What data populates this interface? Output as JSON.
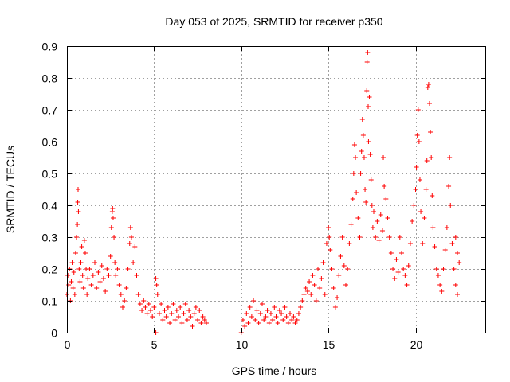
{
  "chart_data": {
    "type": "scatter",
    "title": "Day 053 of 2025, SRMTID for receiver p350",
    "xlabel": "GPS time / hours",
    "ylabel": "SRMTID / TECUs",
    "xlim": [
      0,
      24
    ],
    "ylim": [
      0,
      0.9
    ],
    "xticks": [
      0,
      5,
      10,
      15,
      20
    ],
    "yticks": [
      0,
      0.1,
      0.2,
      0.3,
      0.4,
      0.5,
      0.6,
      0.7,
      0.8,
      0.9
    ],
    "grid": true,
    "marker": "+",
    "color": "#ff0000",
    "series": [
      {
        "name": "SRMTID",
        "points": [
          [
            0.0,
            0.12
          ],
          [
            0.05,
            0.18
          ],
          [
            0.1,
            0.15
          ],
          [
            0.15,
            0.2
          ],
          [
            0.2,
            0.1
          ],
          [
            0.25,
            0.16
          ],
          [
            0.3,
            0.22
          ],
          [
            0.35,
            0.14
          ],
          [
            0.4,
            0.19
          ],
          [
            0.45,
            0.12
          ],
          [
            0.5,
            0.25
          ],
          [
            0.55,
            0.3
          ],
          [
            0.6,
            0.34
          ],
          [
            0.62,
            0.41
          ],
          [
            0.64,
            0.45
          ],
          [
            0.66,
            0.38
          ],
          [
            0.7,
            0.2
          ],
          [
            0.75,
            0.16
          ],
          [
            0.8,
            0.22
          ],
          [
            0.85,
            0.27
          ],
          [
            0.9,
            0.18
          ],
          [
            0.95,
            0.14
          ],
          [
            1.0,
            0.29
          ],
          [
            1.05,
            0.25
          ],
          [
            1.1,
            0.2
          ],
          [
            1.15,
            0.12
          ],
          [
            1.2,
            0.17
          ],
          [
            1.3,
            0.2
          ],
          [
            1.4,
            0.15
          ],
          [
            1.5,
            0.18
          ],
          [
            1.6,
            0.22
          ],
          [
            1.7,
            0.14
          ],
          [
            1.8,
            0.19
          ],
          [
            1.9,
            0.16
          ],
          [
            2.0,
            0.21
          ],
          [
            2.1,
            0.17
          ],
          [
            2.2,
            0.13
          ],
          [
            2.3,
            0.2
          ],
          [
            2.4,
            0.18
          ],
          [
            2.5,
            0.24
          ],
          [
            2.55,
            0.33
          ],
          [
            2.6,
            0.38
          ],
          [
            2.62,
            0.39
          ],
          [
            2.65,
            0.36
          ],
          [
            2.7,
            0.3
          ],
          [
            2.75,
            0.22
          ],
          [
            2.8,
            0.18
          ],
          [
            2.9,
            0.2
          ],
          [
            3.0,
            0.15
          ],
          [
            3.1,
            0.12
          ],
          [
            3.2,
            0.08
          ],
          [
            3.3,
            0.1
          ],
          [
            3.4,
            0.14
          ],
          [
            3.5,
            0.2
          ],
          [
            3.6,
            0.28
          ],
          [
            3.65,
            0.33
          ],
          [
            3.7,
            0.3
          ],
          [
            3.8,
            0.22
          ],
          [
            3.9,
            0.27
          ],
          [
            4.0,
            0.18
          ],
          [
            4.1,
            0.12
          ],
          [
            4.2,
            0.09
          ],
          [
            4.3,
            0.07
          ],
          [
            4.4,
            0.1
          ],
          [
            4.5,
            0.08
          ],
          [
            4.6,
            0.06
          ],
          [
            4.7,
            0.09
          ],
          [
            4.8,
            0.07
          ],
          [
            4.9,
            0.05
          ],
          [
            5.0,
            0.08
          ],
          [
            5.1,
            0.17
          ],
          [
            5.15,
            0.15
          ],
          [
            5.2,
            0.12
          ],
          [
            5.3,
            0.06
          ],
          [
            5.4,
            0.09
          ],
          [
            5.5,
            0.04
          ],
          [
            5.6,
            0.07
          ],
          [
            5.7,
            0.05
          ],
          [
            5.8,
            0.08
          ],
          [
            5.9,
            0.03
          ],
          [
            6.0,
            0.06
          ],
          [
            6.1,
            0.09
          ],
          [
            6.2,
            0.04
          ],
          [
            6.3,
            0.07
          ],
          [
            6.4,
            0.05
          ],
          [
            6.5,
            0.08
          ],
          [
            6.6,
            0.03
          ],
          [
            6.7,
            0.06
          ],
          [
            6.8,
            0.09
          ],
          [
            6.9,
            0.04
          ],
          [
            7.0,
            0.07
          ],
          [
            7.1,
            0.05
          ],
          [
            7.2,
            0.02
          ],
          [
            7.3,
            0.06
          ],
          [
            7.4,
            0.08
          ],
          [
            7.5,
            0.04
          ],
          [
            7.6,
            0.07
          ],
          [
            7.7,
            0.03
          ],
          [
            7.8,
            0.05
          ],
          [
            7.9,
            0.04
          ],
          [
            8.0,
            0.03
          ],
          [
            5.1,
            0.0
          ],
          [
            10.0,
            0.0
          ],
          [
            10.1,
            0.04
          ],
          [
            10.2,
            0.02
          ],
          [
            10.3,
            0.06
          ],
          [
            10.4,
            0.03
          ],
          [
            10.5,
            0.08
          ],
          [
            10.6,
            0.05
          ],
          [
            10.7,
            0.1
          ],
          [
            10.8,
            0.04
          ],
          [
            10.9,
            0.07
          ],
          [
            11.0,
            0.03
          ],
          [
            11.1,
            0.06
          ],
          [
            11.2,
            0.09
          ],
          [
            11.3,
            0.04
          ],
          [
            11.4,
            0.05
          ],
          [
            11.5,
            0.07
          ],
          [
            11.6,
            0.03
          ],
          [
            11.7,
            0.06
          ],
          [
            11.8,
            0.04
          ],
          [
            11.9,
            0.08
          ],
          [
            12.0,
            0.05
          ],
          [
            12.1,
            0.03
          ],
          [
            12.2,
            0.07
          ],
          [
            12.3,
            0.06
          ],
          [
            12.4,
            0.04
          ],
          [
            12.5,
            0.08
          ],
          [
            12.6,
            0.05
          ],
          [
            12.7,
            0.03
          ],
          [
            12.8,
            0.06
          ],
          [
            12.9,
            0.04
          ],
          [
            13.0,
            0.05
          ],
          [
            13.1,
            0.03
          ],
          [
            13.2,
            0.04
          ],
          [
            13.3,
            0.06
          ],
          [
            13.4,
            0.08
          ],
          [
            13.5,
            0.1
          ],
          [
            13.6,
            0.12
          ],
          [
            13.7,
            0.14
          ],
          [
            13.8,
            0.13
          ],
          [
            13.9,
            0.16
          ],
          [
            14.0,
            0.12
          ],
          [
            14.1,
            0.18
          ],
          [
            14.2,
            0.15
          ],
          [
            14.3,
            0.1
          ],
          [
            14.4,
            0.2
          ],
          [
            14.5,
            0.14
          ],
          [
            14.6,
            0.17
          ],
          [
            14.7,
            0.22
          ],
          [
            14.8,
            0.12
          ],
          [
            14.9,
            0.28
          ],
          [
            15.0,
            0.33
          ],
          [
            15.05,
            0.3
          ],
          [
            15.1,
            0.26
          ],
          [
            15.2,
            0.2
          ],
          [
            15.3,
            0.14
          ],
          [
            15.4,
            0.08
          ],
          [
            15.5,
            0.11
          ],
          [
            15.6,
            0.18
          ],
          [
            15.7,
            0.24
          ],
          [
            15.8,
            0.3
          ],
          [
            15.9,
            0.21
          ],
          [
            16.0,
            0.15
          ],
          [
            16.1,
            0.2
          ],
          [
            16.2,
            0.28
          ],
          [
            16.3,
            0.34
          ],
          [
            16.4,
            0.42
          ],
          [
            16.45,
            0.5
          ],
          [
            16.5,
            0.59
          ],
          [
            16.55,
            0.55
          ],
          [
            16.6,
            0.44
          ],
          [
            16.7,
            0.36
          ],
          [
            16.8,
            0.3
          ],
          [
            16.85,
            0.5
          ],
          [
            16.9,
            0.57
          ],
          [
            16.95,
            0.67
          ],
          [
            17.0,
            0.62
          ],
          [
            17.05,
            0.55
          ],
          [
            17.1,
            0.45
          ],
          [
            17.15,
            0.41
          ],
          [
            17.2,
            0.76
          ],
          [
            17.22,
            0.85
          ],
          [
            17.25,
            0.88
          ],
          [
            17.28,
            0.71
          ],
          [
            17.3,
            0.6
          ],
          [
            17.35,
            0.74
          ],
          [
            17.4,
            0.56
          ],
          [
            17.45,
            0.48
          ],
          [
            17.5,
            0.4
          ],
          [
            17.55,
            0.33
          ],
          [
            17.6,
            0.38
          ],
          [
            17.7,
            0.3
          ],
          [
            17.8,
            0.35
          ],
          [
            17.9,
            0.29
          ],
          [
            18.0,
            0.37
          ],
          [
            18.1,
            0.32
          ],
          [
            18.15,
            0.55
          ],
          [
            18.2,
            0.46
          ],
          [
            18.3,
            0.42
          ],
          [
            18.4,
            0.36
          ],
          [
            18.5,
            0.3
          ],
          [
            18.6,
            0.25
          ],
          [
            18.7,
            0.2
          ],
          [
            18.8,
            0.17
          ],
          [
            18.9,
            0.23
          ],
          [
            19.0,
            0.19
          ],
          [
            19.1,
            0.3
          ],
          [
            19.2,
            0.25
          ],
          [
            19.3,
            0.2
          ],
          [
            19.4,
            0.18
          ],
          [
            19.5,
            0.15
          ],
          [
            19.6,
            0.21
          ],
          [
            19.7,
            0.28
          ],
          [
            19.8,
            0.35
          ],
          [
            19.9,
            0.4
          ],
          [
            20.0,
            0.45
          ],
          [
            20.05,
            0.52
          ],
          [
            20.1,
            0.62
          ],
          [
            20.15,
            0.7
          ],
          [
            20.2,
            0.6
          ],
          [
            20.25,
            0.48
          ],
          [
            20.3,
            0.38
          ],
          [
            20.4,
            0.28
          ],
          [
            20.5,
            0.36
          ],
          [
            20.6,
            0.45
          ],
          [
            20.65,
            0.54
          ],
          [
            20.7,
            0.77
          ],
          [
            20.75,
            0.78
          ],
          [
            20.8,
            0.72
          ],
          [
            20.85,
            0.63
          ],
          [
            20.9,
            0.55
          ],
          [
            20.95,
            0.43
          ],
          [
            21.0,
            0.33
          ],
          [
            21.1,
            0.27
          ],
          [
            21.2,
            0.2
          ],
          [
            21.3,
            0.18
          ],
          [
            21.4,
            0.15
          ],
          [
            21.5,
            0.13
          ],
          [
            21.6,
            0.2
          ],
          [
            21.7,
            0.26
          ],
          [
            21.8,
            0.33
          ],
          [
            21.9,
            0.46
          ],
          [
            21.95,
            0.55
          ],
          [
            22.0,
            0.4
          ],
          [
            22.1,
            0.28
          ],
          [
            22.2,
            0.2
          ],
          [
            22.3,
            0.15
          ],
          [
            22.4,
            0.25
          ],
          [
            22.5,
            0.22
          ],
          [
            22.4,
            0.12
          ],
          [
            22.3,
            0.3
          ]
        ]
      }
    ]
  }
}
